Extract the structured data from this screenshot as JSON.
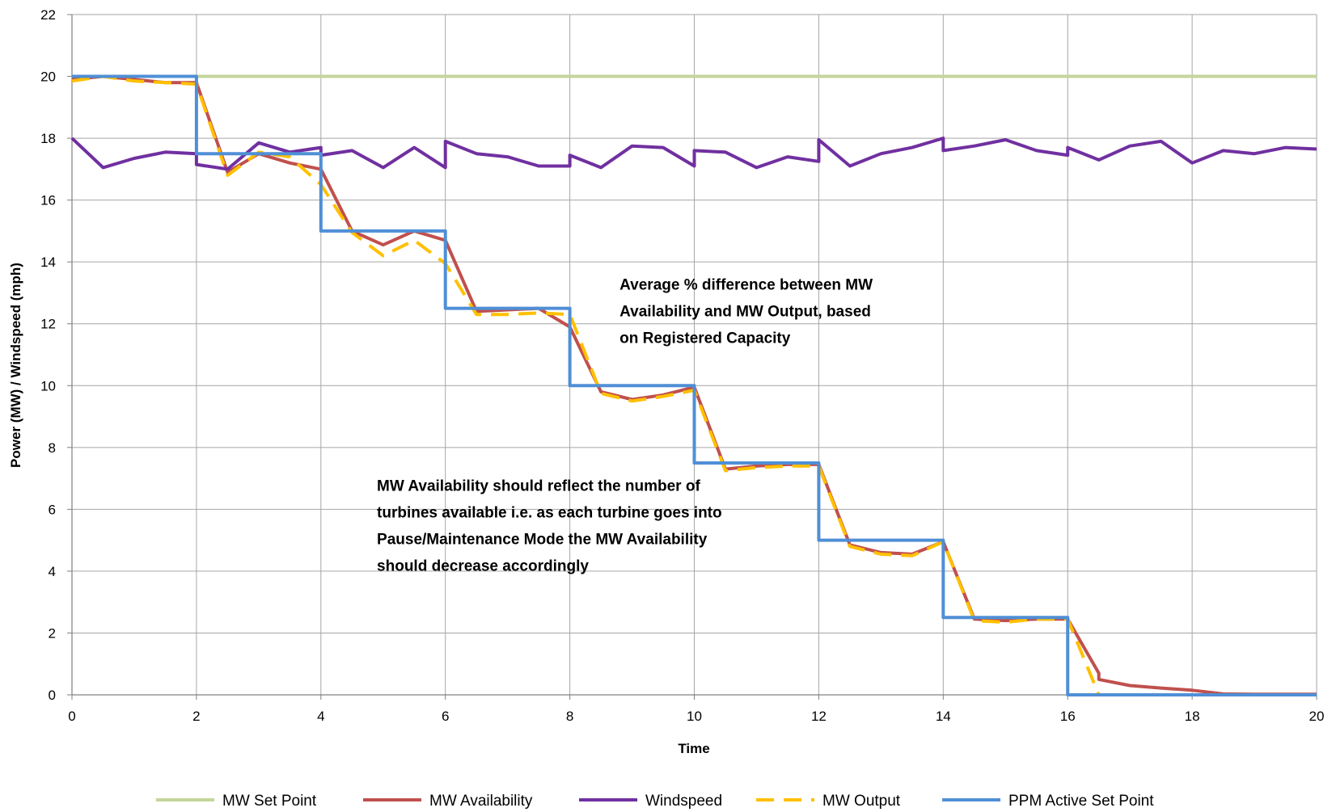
{
  "chart_data": {
    "type": "line",
    "xlabel": "Time",
    "ylabel": "Power (MW) / Windspeed (mph)",
    "xlim": [
      0,
      20
    ],
    "ylim": [
      0,
      22
    ],
    "xticks": [
      "0",
      "2",
      "4",
      "6",
      "8",
      "10",
      "12",
      "14",
      "16",
      "18",
      "20"
    ],
    "yticks": [
      "0",
      "2",
      "4",
      "6",
      "8",
      "10",
      "12",
      "14",
      "16",
      "18",
      "20",
      "22"
    ],
    "grid": true,
    "legend_position": "bottom",
    "annotations": [
      {
        "lines": [
          "Average % difference between MW",
          "Availability and MW Output, based",
          "on Registered Capacity"
        ],
        "anchor": [
          8.8,
          13.1
        ]
      },
      {
        "lines": [
          "MW Availability should reflect the number of",
          "turbines available i.e. as each turbine goes into",
          "Pause/Maintenance Mode the MW Availability",
          "should decrease accordingly"
        ],
        "anchor": [
          4.9,
          6.6
        ]
      }
    ],
    "series": [
      {
        "name": "MW Set Point",
        "color": "#c3d69b",
        "dash": "solid",
        "x": [
          0,
          20
        ],
        "y": [
          20,
          20
        ]
      },
      {
        "name": "MW Availability",
        "color": "#c0504d",
        "dash": "solid",
        "x": [
          0,
          0.5,
          1,
          1.5,
          2,
          2.5,
          3,
          3.5,
          4,
          4.5,
          5,
          5.5,
          6,
          6.5,
          7,
          7.5,
          8,
          8.5,
          9,
          9.5,
          10,
          10.5,
          11,
          11.5,
          12,
          12.5,
          13,
          13.5,
          14,
          14.5,
          15,
          15.5,
          16,
          16.5,
          16.5,
          17,
          17.5,
          18,
          18.5,
          19,
          19.5,
          20
        ],
        "y": [
          19.9,
          20.0,
          19.9,
          19.8,
          19.8,
          16.9,
          17.5,
          17.2,
          17.0,
          15.0,
          14.55,
          15.0,
          14.7,
          12.4,
          12.45,
          12.5,
          11.9,
          9.8,
          9.55,
          9.7,
          9.95,
          7.3,
          7.4,
          7.45,
          7.45,
          4.85,
          4.6,
          4.55,
          4.95,
          2.45,
          2.4,
          2.45,
          2.45,
          0.7,
          0.5,
          0.3,
          0.22,
          0.15,
          0.03,
          0.02,
          0.02,
          0.02
        ]
      },
      {
        "name": "Windspeed",
        "color": "#7030a0",
        "dash": "solid",
        "x": [
          0,
          0.5,
          1,
          1.5,
          2,
          2.0,
          2.5,
          3,
          3.5,
          4,
          4.0,
          4.5,
          5,
          5.5,
          6,
          6.0,
          6.5,
          7,
          7.5,
          8,
          8.0,
          8.5,
          9,
          9.5,
          10,
          10.0,
          10.5,
          11,
          11.5,
          12,
          12.0,
          12.5,
          13,
          13.5,
          14,
          14.0,
          14.5,
          15,
          15.5,
          16,
          16.0,
          16.5,
          17,
          17.5,
          18,
          18.5,
          19,
          19.5,
          20
        ],
        "y": [
          18.0,
          17.05,
          17.35,
          17.55,
          17.5,
          17.15,
          17.0,
          17.85,
          17.55,
          17.7,
          17.45,
          17.6,
          17.05,
          17.7,
          17.05,
          17.9,
          17.5,
          17.4,
          17.1,
          17.1,
          17.45,
          17.05,
          17.75,
          17.7,
          17.1,
          17.6,
          17.55,
          17.05,
          17.4,
          17.25,
          17.95,
          17.1,
          17.5,
          17.7,
          18.0,
          17.6,
          17.75,
          17.95,
          17.6,
          17.45,
          17.7,
          17.3,
          17.75,
          17.9,
          17.2,
          17.6,
          17.5,
          17.7,
          17.65
        ]
      },
      {
        "name": "MW Output",
        "color": "#ffc000",
        "dash": "dashed",
        "x": [
          0,
          0.5,
          1,
          1.5,
          2,
          2.5,
          3,
          3.5,
          4,
          4.5,
          5,
          5.5,
          6,
          6.5,
          7,
          7.5,
          8,
          8.5,
          9,
          9.5,
          10,
          10.5,
          11,
          11.5,
          12,
          12.5,
          13,
          13.5,
          14,
          14.5,
          15,
          15.5,
          16,
          16.5,
          16.5,
          17,
          17.5,
          18,
          18.5,
          19,
          19.5,
          20
        ],
        "y": [
          19.85,
          20.0,
          19.85,
          19.8,
          19.75,
          16.8,
          17.55,
          17.4,
          16.5,
          14.95,
          14.2,
          14.7,
          13.95,
          12.3,
          12.3,
          12.35,
          12.3,
          9.75,
          9.5,
          9.65,
          9.85,
          7.25,
          7.35,
          7.4,
          7.4,
          4.8,
          4.55,
          4.5,
          4.95,
          2.4,
          2.35,
          2.45,
          2.45,
          0.0,
          0.0,
          0.0,
          0.0,
          0.0,
          0.0,
          0.0,
          0.0,
          0.0
        ]
      },
      {
        "name": "PPM Active Set Point",
        "color": "#4f8fd6",
        "dash": "solid",
        "x": [
          0,
          2,
          2,
          4,
          4,
          6,
          6,
          8,
          8,
          10,
          10,
          12,
          12,
          14,
          14,
          16,
          16,
          20
        ],
        "y": [
          20,
          20,
          17.5,
          17.5,
          15,
          15,
          12.5,
          12.5,
          10,
          10,
          7.5,
          7.5,
          5,
          5,
          2.5,
          2.5,
          0,
          0
        ]
      }
    ]
  }
}
